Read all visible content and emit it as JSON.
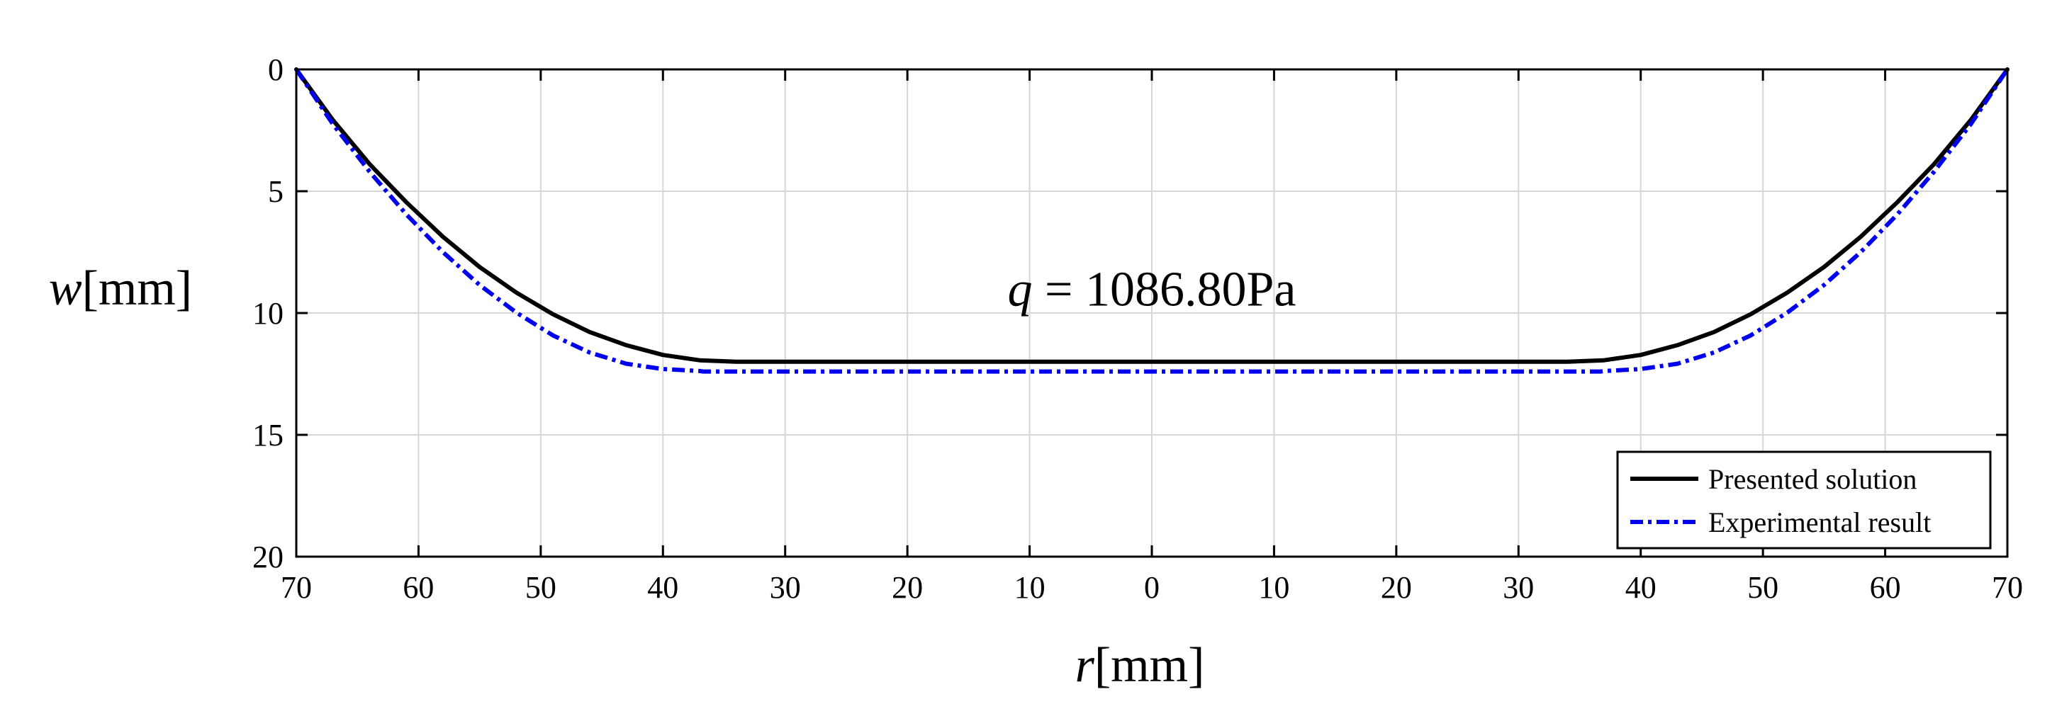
{
  "chart_data": {
    "type": "line",
    "x_tick_labels": [
      "70",
      "60",
      "50",
      "40",
      "30",
      "20",
      "10",
      "0",
      "10",
      "20",
      "30",
      "40",
      "50",
      "60",
      "70"
    ],
    "x_tick_values": [
      -70,
      -60,
      -50,
      -40,
      -30,
      -20,
      -10,
      0,
      10,
      20,
      30,
      40,
      50,
      60,
      70
    ],
    "y_tick_labels": [
      "0",
      "5",
      "10",
      "15",
      "20"
    ],
    "y_tick_values": [
      0,
      5,
      10,
      15,
      20
    ],
    "xlim": [
      -70,
      70
    ],
    "ylim": [
      0,
      20
    ],
    "y_reversed": true,
    "grid": true,
    "xlabel": {
      "italic": "r",
      "rest": "[mm]"
    },
    "ylabel": {
      "italic": "w",
      "rest": "[mm]"
    },
    "annotation": {
      "italic": "q",
      "rest": " = 1086.80Pa",
      "x": 0,
      "y": 9
    },
    "legend_position": "bottom-right",
    "series": [
      {
        "name": "Presented solution",
        "color": "#000000",
        "style": "solid",
        "x": [
          -70,
          -67,
          -64,
          -61,
          -58,
          -55,
          -52,
          -49,
          -46,
          -43,
          -40,
          -37,
          -34,
          -33.9,
          0,
          33.9,
          34,
          37,
          40,
          43,
          46,
          49,
          52,
          55,
          58,
          61,
          64,
          67,
          70
        ],
        "y": [
          0,
          2.08,
          3.89,
          5.45,
          6.87,
          8.11,
          9.16,
          10.05,
          10.78,
          11.32,
          11.72,
          11.94,
          12.0,
          12.0,
          12.0,
          12.0,
          12.0,
          11.94,
          11.72,
          11.32,
          10.78,
          10.05,
          9.16,
          8.11,
          6.87,
          5.45,
          3.89,
          2.08,
          0
        ]
      },
      {
        "name": "Experimental result",
        "color": "#0000ee",
        "style": "dashdot",
        "x": [
          -70,
          -67,
          -64,
          -61,
          -58,
          -55,
          -52,
          -49,
          -46,
          -43,
          -40,
          -37,
          -36.7,
          0,
          36.7,
          37,
          40,
          43,
          46,
          49,
          52,
          55,
          58,
          61,
          64,
          67,
          70
        ],
        "y": [
          0,
          2.25,
          4.2,
          5.95,
          7.5,
          8.85,
          9.98,
          10.92,
          11.62,
          12.08,
          12.3,
          12.38,
          12.4,
          12.4,
          12.4,
          12.38,
          12.3,
          12.08,
          11.62,
          10.92,
          9.98,
          8.85,
          7.5,
          5.95,
          4.2,
          2.25,
          0
        ]
      }
    ]
  }
}
